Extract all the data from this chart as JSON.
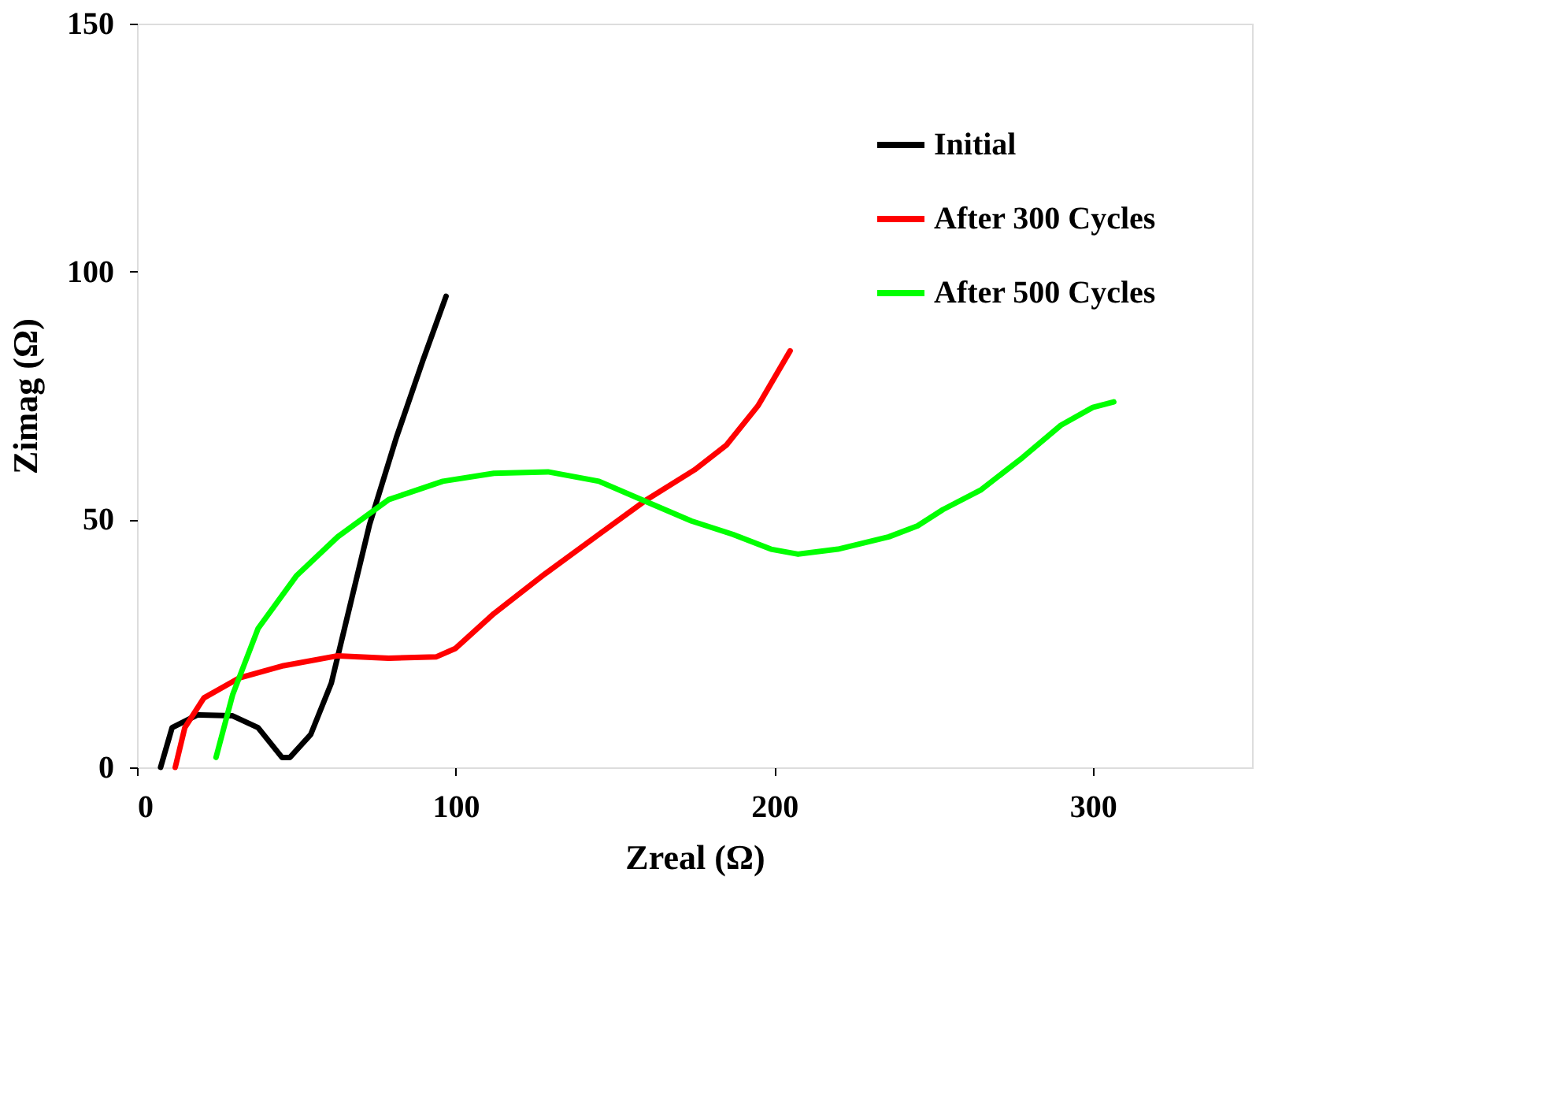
{
  "chart_data": {
    "type": "line",
    "xlabel": "Zreal (Ω)",
    "ylabel": "Zimag (Ω)",
    "xlim": [
      0,
      350
    ],
    "xticks": [
      0,
      100,
      200,
      300
    ],
    "ylim": [
      0,
      150
    ],
    "yticks": [
      0,
      50,
      100,
      150
    ],
    "grid": false,
    "legend": "top right",
    "marker": "none",
    "line_style": "solid",
    "series": [
      {
        "name": "Initial",
        "color": "#000000",
        "x": [
          7.4,
          11,
          19,
          30,
          38,
          45.5,
          48,
          54.5,
          61,
          67,
          73,
          81.4,
          89.7,
          97
        ],
        "values": [
          0,
          8,
          10.6,
          10.4,
          8,
          2,
          2,
          6.6,
          17,
          33,
          49,
          66.5,
          82,
          95
        ]
      },
      {
        "name": "After 300 Cycles",
        "color": "#ff0000",
        "x": [
          12,
          15,
          21,
          32,
          46,
          63,
          79,
          94,
          100,
          112,
          128,
          145,
          160,
          175,
          185,
          195,
          205
        ],
        "values": [
          0,
          8,
          14,
          18,
          20.5,
          22.5,
          22,
          22.3,
          24,
          31,
          39,
          47,
          54,
          60,
          65,
          73,
          84
        ]
      },
      {
        "name": "After 500 Cycles",
        "color": "#00ff00",
        "x": [
          24.8,
          30,
          38,
          50,
          63,
          79,
          96,
          112,
          129,
          145,
          162,
          174,
          187,
          199,
          207.5,
          220,
          236,
          245,
          253,
          265,
          278,
          290,
          300,
          306.6
        ],
        "values": [
          2,
          14.6,
          28,
          38.6,
          46.5,
          54,
          57.7,
          59.3,
          59.6,
          57.7,
          53,
          49.7,
          47,
          44,
          43,
          44,
          46.5,
          48.7,
          52,
          56,
          62.5,
          69,
          72.6,
          73.7
        ]
      }
    ]
  }
}
